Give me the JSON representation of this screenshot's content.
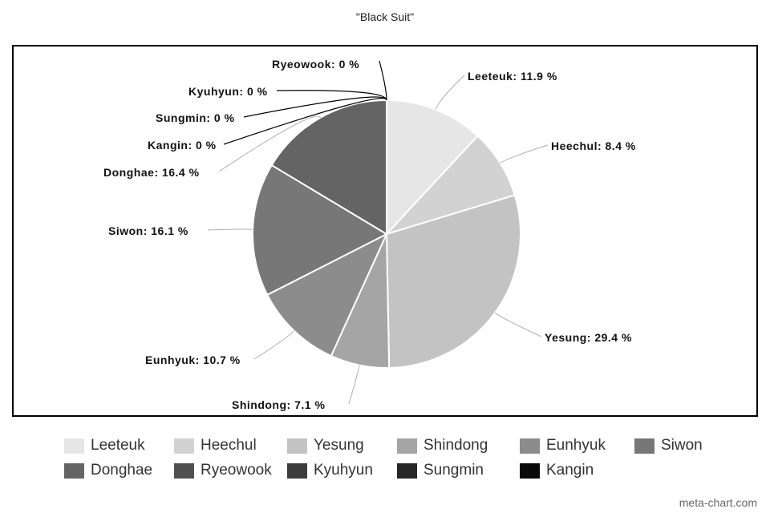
{
  "chart_data": {
    "type": "pie",
    "title": "\"Black Suit\"",
    "slices": [
      {
        "label": "Leeteuk",
        "value": 11.9,
        "display": "Leeteuk: 11.9 %",
        "color": "#e6e6e6"
      },
      {
        "label": "Heechul",
        "value": 8.4,
        "display": "Heechul: 8.4 %",
        "color": "#d2d2d2"
      },
      {
        "label": "Yesung",
        "value": 29.4,
        "display": "Yesung: 29.4 %",
        "color": "#c3c3c3"
      },
      {
        "label": "Shindong",
        "value": 7.1,
        "display": "Shindong: 7.1 %",
        "color": "#a5a5a5"
      },
      {
        "label": "Eunhyuk",
        "value": 10.7,
        "display": "Eunhyuk: 10.7 %",
        "color": "#8c8c8c"
      },
      {
        "label": "Siwon",
        "value": 16.1,
        "display": "Siwon: 16.1 %",
        "color": "#777777"
      },
      {
        "label": "Donghae",
        "value": 16.4,
        "display": "Donghae: 16.4 %",
        "color": "#646464"
      },
      {
        "label": "Ryeowook",
        "value": 0,
        "display": "Ryeowook: 0 %",
        "color": "#505050"
      },
      {
        "label": "Kyuhyun",
        "value": 0,
        "display": "Kyuhyun: 0 %",
        "color": "#3c3c3c"
      },
      {
        "label": "Sungmin",
        "value": 0,
        "display": "Sungmin: 0 %",
        "color": "#262626"
      },
      {
        "label": "Kangin",
        "value": 0,
        "display": "Kangin: 0 %",
        "color": "#0a0a0a"
      }
    ],
    "legend_position": "bottom"
  },
  "watermark": "meta-chart.com"
}
